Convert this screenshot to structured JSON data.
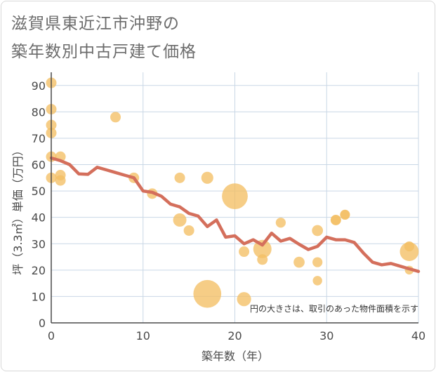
{
  "title_lines": [
    "滋賀県東近江市沖野の",
    "築年数別中古戸建て価格"
  ],
  "chart_data": {
    "type": "scatter",
    "title": "滋賀県東近江市沖野の築年数別中古戸建て価格",
    "xlabel": "築年数（年）",
    "ylabel": "坪（3.3㎡）単価（万円）",
    "xlim": [
      0,
      40
    ],
    "ylim": [
      0,
      95
    ],
    "xticks": [
      0,
      10,
      20,
      30,
      40
    ],
    "yticks": [
      0,
      10,
      20,
      30,
      40,
      50,
      60,
      70,
      80,
      90
    ],
    "grid": true,
    "annotation": "円の大きさは、取引のあった物件面積を示す",
    "colors": {
      "bubble": "#f3bf64",
      "line": "#d46f5c",
      "grid": "#c9d7e6",
      "axis": "#4a4a4a"
    },
    "points": [
      {
        "x": 0,
        "y": 91,
        "size": 1
      },
      {
        "x": 0,
        "y": 81,
        "size": 1
      },
      {
        "x": 0,
        "y": 75,
        "size": 1
      },
      {
        "x": 0,
        "y": 72,
        "size": 1
      },
      {
        "x": 0,
        "y": 63,
        "size": 1
      },
      {
        "x": 0,
        "y": 55,
        "size": 1
      },
      {
        "x": 1,
        "y": 63,
        "size": 1
      },
      {
        "x": 1,
        "y": 56,
        "size": 1
      },
      {
        "x": 1,
        "y": 54,
        "size": 1
      },
      {
        "x": 7,
        "y": 78,
        "size": 1
      },
      {
        "x": 9,
        "y": 55,
        "size": 1
      },
      {
        "x": 11,
        "y": 49,
        "size": 1
      },
      {
        "x": 14,
        "y": 55,
        "size": 1
      },
      {
        "x": 14,
        "y": 39,
        "size": 1.6
      },
      {
        "x": 15,
        "y": 35,
        "size": 1
      },
      {
        "x": 17,
        "y": 55,
        "size": 1.3
      },
      {
        "x": 17,
        "y": 11,
        "size": 7
      },
      {
        "x": 20,
        "y": 48,
        "size": 6
      },
      {
        "x": 21,
        "y": 27,
        "size": 1
      },
      {
        "x": 21,
        "y": 9,
        "size": 1.8
      },
      {
        "x": 23,
        "y": 28,
        "size": 3
      },
      {
        "x": 23,
        "y": 24,
        "size": 1
      },
      {
        "x": 25,
        "y": 38,
        "size": 0.9
      },
      {
        "x": 27,
        "y": 23,
        "size": 1.1
      },
      {
        "x": 29,
        "y": 35,
        "size": 1.1
      },
      {
        "x": 29,
        "y": 23,
        "size": 0.9
      },
      {
        "x": 29,
        "y": 16,
        "size": 0.8
      },
      {
        "x": 31,
        "y": 39,
        "size": 1
      },
      {
        "x": 31,
        "y": 39,
        "size": 0.9
      },
      {
        "x": 32,
        "y": 41,
        "size": 0.9
      },
      {
        "x": 32,
        "y": 41,
        "size": 0.8
      },
      {
        "x": 39,
        "y": 27,
        "size": 3.2
      },
      {
        "x": 39,
        "y": 29,
        "size": 0.9
      },
      {
        "x": 39,
        "y": 20,
        "size": 0.7
      }
    ],
    "line": {
      "x": [
        0,
        1,
        2,
        3,
        4,
        5,
        6,
        7,
        8,
        9,
        10,
        11,
        12,
        13,
        14,
        15,
        16,
        17,
        18,
        19,
        20,
        21,
        22,
        23,
        24,
        25,
        26,
        27,
        28,
        29,
        30,
        31,
        32,
        33,
        34,
        35,
        36,
        37,
        38,
        39,
        40
      ],
      "y": [
        62.5,
        61.5,
        60,
        56.5,
        56.3,
        59,
        58,
        57,
        56,
        55,
        50,
        49.5,
        48,
        45,
        44,
        41.5,
        40.5,
        36.5,
        39,
        32.5,
        33,
        30,
        31.5,
        29.5,
        34,
        31,
        32,
        29.8,
        27.8,
        29,
        32.5,
        31.5,
        31.5,
        30.5,
        26.5,
        23,
        22,
        22.5,
        21.5,
        20.5,
        19.5
      ]
    }
  }
}
